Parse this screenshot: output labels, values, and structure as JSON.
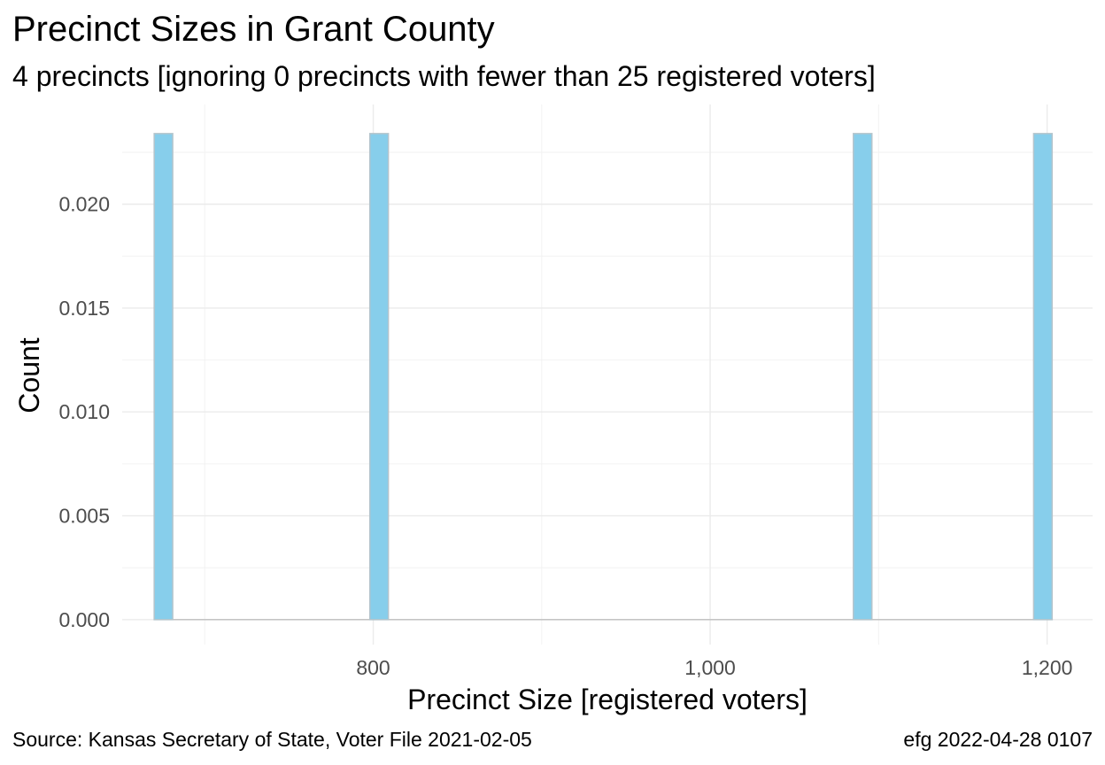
{
  "header": {
    "title": "Precinct Sizes in Grant County",
    "subtitle": "4 precincts [ignoring 0 precincts with fewer than 25 registered voters]"
  },
  "footer": {
    "source": "Source:  Kansas Secretary of State, Voter File  2021-02-05",
    "stamp": "efg 2022-04-28 0107"
  },
  "chart_data": {
    "type": "bar",
    "title": "Precinct Sizes in Grant County",
    "subtitle": "4 precincts [ignoring 0 precincts with fewer than 25 registered voters]",
    "xlabel": "Precinct Size [registered voters]",
    "ylabel": "Count",
    "xlim": [
      651,
      1227
    ],
    "ylim": [
      -0.0012,
      0.0248
    ],
    "x_ticks": [
      800,
      1000,
      1200
    ],
    "x_tick_labels": [
      "800",
      "1,000",
      "1,200"
    ],
    "y_ticks": [
      0,
      0.005,
      0.01,
      0.015,
      0.02
    ],
    "y_tick_labels": [
      "0.000",
      "0.005",
      "0.010",
      "0.015",
      "0.020"
    ],
    "bins": [
      {
        "x0": 670,
        "x1": 681,
        "value": 0.0234
      },
      {
        "x0": 798,
        "x1": 809,
        "value": 0.0234
      },
      {
        "x0": 1085,
        "x1": 1096,
        "value": 0.0234
      },
      {
        "x0": 1192,
        "x1": 1203,
        "value": 0.0234
      }
    ],
    "grid": true,
    "legend": "none",
    "colors": {
      "bar_fill": "#87ceeb",
      "bar_outline": "#b4c4cc",
      "baseline": "#bebebe"
    }
  }
}
